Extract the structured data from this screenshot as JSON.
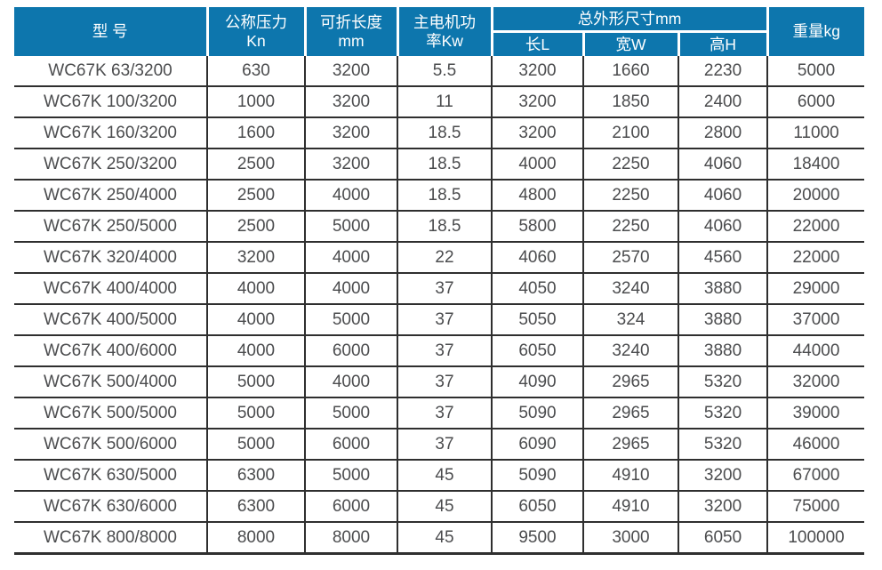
{
  "colors": {
    "header_bg": "#0d76ad",
    "header_text": "#ffffff",
    "cell_text": "#4b4c4e",
    "border": "#2f2f2f",
    "row_bg": "#ffffff"
  },
  "table": {
    "header": {
      "model": "型 号",
      "pressure": [
        "公称压力",
        "Kn"
      ],
      "fold_length": [
        "可折长度",
        "mm"
      ],
      "motor_power": [
        "主电机功",
        "率Kw"
      ],
      "dimensions_group": "总外形尺寸mm",
      "dim_length": "长L",
      "dim_width": "宽W",
      "dim_height": "高H",
      "weight": "重量kg"
    },
    "rows": [
      [
        "WC67K 63/3200",
        "630",
        "3200",
        "5.5",
        "3200",
        "1660",
        "2230",
        "5000"
      ],
      [
        "WC67K 100/3200",
        "1000",
        "3200",
        "11",
        "3200",
        "1850",
        "2400",
        "6000"
      ],
      [
        "WC67K 160/3200",
        "1600",
        "3200",
        "18.5",
        "3200",
        "2100",
        "2800",
        "11000"
      ],
      [
        "WC67K 250/3200",
        "2500",
        "3200",
        "18.5",
        "4000",
        "2250",
        "4060",
        "18400"
      ],
      [
        "WC67K 250/4000",
        "2500",
        "4000",
        "18.5",
        "4800",
        "2250",
        "4060",
        "20000"
      ],
      [
        "WC67K 250/5000",
        "2500",
        "5000",
        "18.5",
        "5800",
        "2250",
        "4060",
        "22000"
      ],
      [
        "WC67K 320/4000",
        "3200",
        "4000",
        "22",
        "4060",
        "2570",
        "4560",
        "22000"
      ],
      [
        "WC67K 400/4000",
        "4000",
        "4000",
        "37",
        "4050",
        "3240",
        "3880",
        "29000"
      ],
      [
        "WC67K 400/5000",
        "4000",
        "5000",
        "37",
        "5050",
        "324",
        "3880",
        "37000"
      ],
      [
        "WC67K 400/6000",
        "4000",
        "6000",
        "37",
        "6050",
        "3240",
        "3880",
        "44000"
      ],
      [
        "WC67K 500/4000",
        "5000",
        "4000",
        "37",
        "4090",
        "2965",
        "5320",
        "32000"
      ],
      [
        "WC67K 500/5000",
        "5000",
        "5000",
        "37",
        "5090",
        "2965",
        "5320",
        "39000"
      ],
      [
        "WC67K 500/6000",
        "5000",
        "6000",
        "37",
        "6090",
        "2965",
        "5320",
        "46000"
      ],
      [
        "WC67K 630/5000",
        "6300",
        "5000",
        "45",
        "5090",
        "4910",
        "3200",
        "67000"
      ],
      [
        "WC67K 630/6000",
        "6300",
        "6000",
        "45",
        "6050",
        "4910",
        "3200",
        "75000"
      ],
      [
        "WC67K 800/8000",
        "8000",
        "8000",
        "45",
        "9500",
        "3000",
        "6050",
        "100000"
      ]
    ]
  }
}
